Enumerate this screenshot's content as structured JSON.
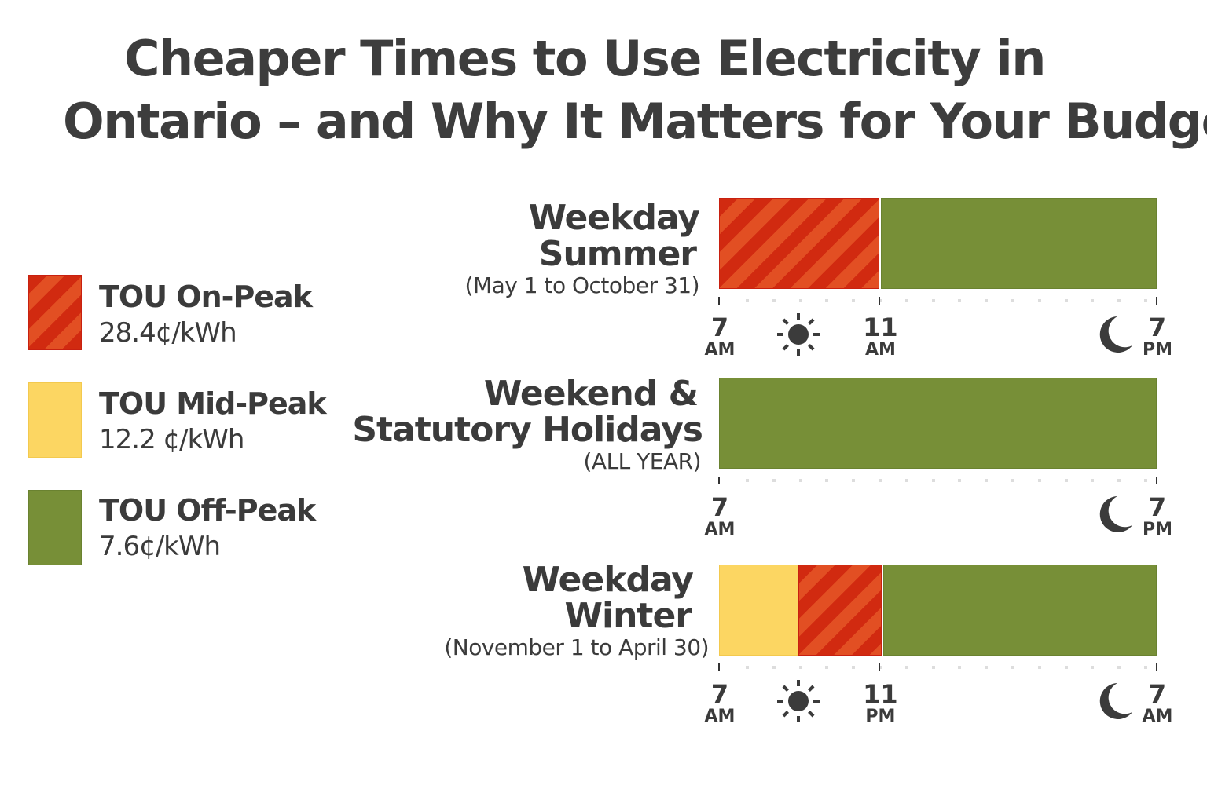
{
  "title": {
    "line1": "Cheaper Times to Use Electricity in",
    "line2": "Ontario – and Why It Matters for Your Budget"
  },
  "legend": [
    {
      "name": "TOU On-Peak",
      "rate": "28.4¢/kWh",
      "color": "#d12a10",
      "pattern": "stripes"
    },
    {
      "name": "TOU Mid-Peak",
      "rate": "12.2 ¢/kWh",
      "color": "#fcd662"
    },
    {
      "name": "TOU Off-Peak",
      "rate": "7.6¢/kWh",
      "color": "#778f37"
    }
  ],
  "chart_data": {
    "type": "bar",
    "orientation": "horizontal-stacked-timeline",
    "rows": [
      {
        "label_line1": "Weekday",
        "label_line2": "Summer",
        "sublabel": "(May 1 to October 31)",
        "segments": [
          {
            "rate": "on-peak",
            "start": "7 AM",
            "end": "11 AM",
            "fraction": 0.367
          },
          {
            "rate": "off-peak",
            "start": "11 AM",
            "end": "7 PM",
            "fraction": 0.633
          }
        ],
        "ticks": [
          {
            "num": "7",
            "mer": "AM",
            "pos": 0
          },
          {
            "num": "11",
            "mer": "AM",
            "pos": 0.367
          },
          {
            "num": "7",
            "mer": "PM",
            "pos": 1
          }
        ],
        "icons": [
          "sun-icon",
          "moon-icon"
        ]
      },
      {
        "label_line1": "Weekend &",
        "label_line2": "Statutory Holidays",
        "sublabel": "(ALL YEAR)",
        "segments": [
          {
            "rate": "off-peak",
            "start": "7 AM",
            "end": "7 PM",
            "fraction": 1
          }
        ],
        "ticks": [
          {
            "num": "7",
            "mer": "AM",
            "pos": 0
          },
          {
            "num": "7",
            "mer": "PM",
            "pos": 1
          }
        ],
        "icons": [
          "moon-icon"
        ]
      },
      {
        "label_line1": "Weekday",
        "label_line2": "Winter",
        "sublabel": "(November 1 to April 30)",
        "segments": [
          {
            "rate": "mid-peak",
            "start": "7 AM",
            "fraction": 0.18
          },
          {
            "rate": "on-peak",
            "end": "11 PM",
            "fraction": 0.19
          },
          {
            "rate": "off-peak",
            "start": "11 PM",
            "end": "7 AM",
            "fraction": 0.63
          }
        ],
        "ticks": [
          {
            "num": "7",
            "mer": "AM",
            "pos": 0
          },
          {
            "num": "11",
            "mer": "PM",
            "pos": 0.367
          },
          {
            "num": "7",
            "mer": "AM",
            "pos": 1
          }
        ],
        "icons": [
          "sun-icon",
          "moon-icon"
        ]
      }
    ]
  }
}
